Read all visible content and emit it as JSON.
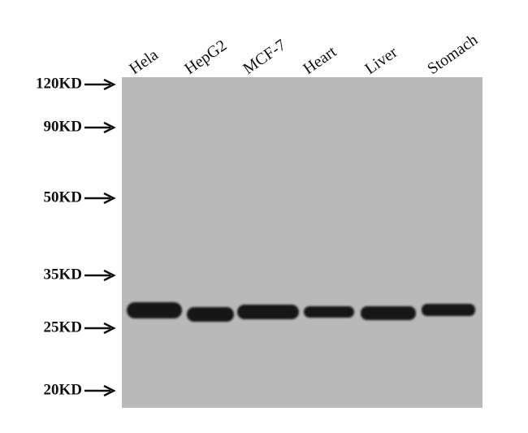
{
  "lanes": [
    "Hela",
    "HepG2",
    "MCF-7",
    "Heart",
    "Liver",
    "Stomach"
  ],
  "markers": [
    "120KD",
    "90KD",
    "50KD",
    "35KD",
    "25KD",
    "20KD"
  ]
}
